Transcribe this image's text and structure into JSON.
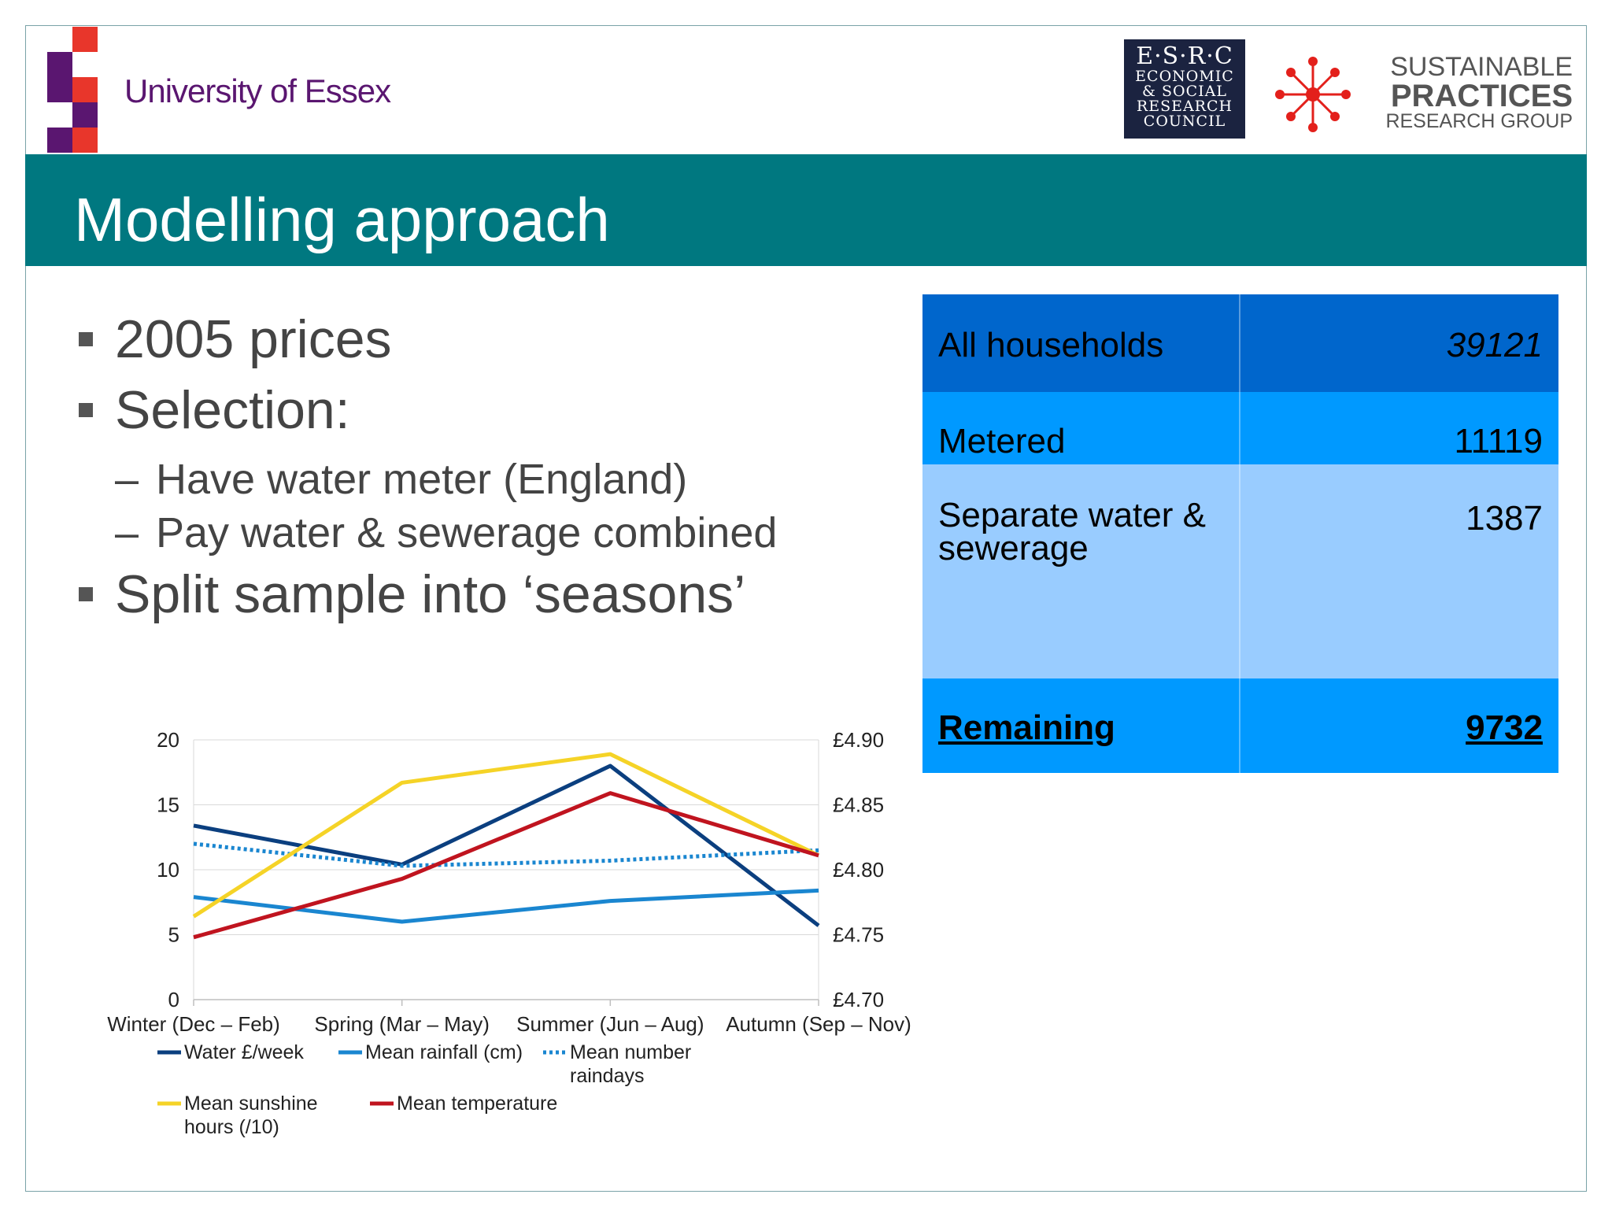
{
  "header": {
    "university": "University of Essex",
    "esrc": {
      "top": "E·S·R·C",
      "lines": [
        "ECONOMIC",
        "& SOCIAL",
        "RESEARCH",
        "COUNCIL"
      ]
    },
    "spr": {
      "line1": "SUSTAINABLE",
      "line2": "PRACTICES",
      "line3": "RESEARCH GROUP"
    },
    "colors": {
      "essex_purple": "#5a1670",
      "essex_red": "#e8362b",
      "teal": "#007880",
      "spr_red": "#e3201b"
    }
  },
  "title": "Modelling approach",
  "bullets": {
    "b1": "2005 prices",
    "b2": "Selection:",
    "b2_sub1": "Have water meter (England)",
    "b2_sub2": "Pay water & sewerage combined",
    "b3": "Split sample into ‘seasons’",
    "dash": "–"
  },
  "table": {
    "rows": [
      {
        "label": "All households",
        "value": "39121",
        "style": "italic"
      },
      {
        "label": "Metered",
        "value": "11119",
        "style": "normal"
      },
      {
        "label": "Separate water & sewerage",
        "value": "1387",
        "style": "normal"
      },
      {
        "label": "Remaining",
        "value": "9732",
        "style": "bold-underline"
      }
    ],
    "colors": {
      "dark": "#0066cc",
      "mid": "#0099ff",
      "light": "#99ccff"
    }
  },
  "chart_data": {
    "type": "line",
    "categories": [
      "Winter (Dec – Feb)",
      "Spring (Mar – May)",
      "Summer (Jun – Aug)",
      "Autumn (Sep – Nov)"
    ],
    "y_left": {
      "range": [
        0,
        20
      ],
      "ticks": [
        "0",
        "5",
        "10",
        "15",
        "20"
      ]
    },
    "y_right": {
      "range": [
        4.7,
        4.9
      ],
      "ticks": [
        "£4.70",
        "£4.75",
        "£4.80",
        "£4.85",
        "£4.90"
      ]
    },
    "series": [
      {
        "name": "Water £/week",
        "axis": "right",
        "values": [
          4.834,
          4.804,
          4.88,
          4.757
        ],
        "color": "#0b3f7f",
        "dash": false
      },
      {
        "name": "Mean rainfall (cm)",
        "axis": "left",
        "values": [
          7.9,
          6.0,
          7.6,
          8.4
        ],
        "color": "#1a86d0",
        "dash": false
      },
      {
        "name": "Mean number raindays",
        "axis": "left",
        "values": [
          12.0,
          10.3,
          10.7,
          11.5
        ],
        "color": "#1a86d0",
        "dash": true
      },
      {
        "name": "Mean sunshine hours (/10)",
        "axis": "left",
        "values": [
          6.4,
          16.7,
          18.9,
          11.1
        ],
        "color": "#f5d327",
        "dash": false
      },
      {
        "name": "Mean temperature",
        "axis": "left",
        "values": [
          4.8,
          9.3,
          15.9,
          11.1
        ],
        "color": "#c0141f",
        "dash": false
      }
    ],
    "legend": [
      {
        "lines": [
          "Water £/week"
        ]
      },
      {
        "lines": [
          "Mean rainfall (cm)"
        ]
      },
      {
        "lines": [
          "Mean number",
          "raindays"
        ]
      },
      {
        "lines": [
          "Mean sunshine",
          "hours (/10)"
        ]
      },
      {
        "lines": [
          "Mean temperature"
        ]
      }
    ],
    "grid": true,
    "legend_position": "bottom"
  }
}
